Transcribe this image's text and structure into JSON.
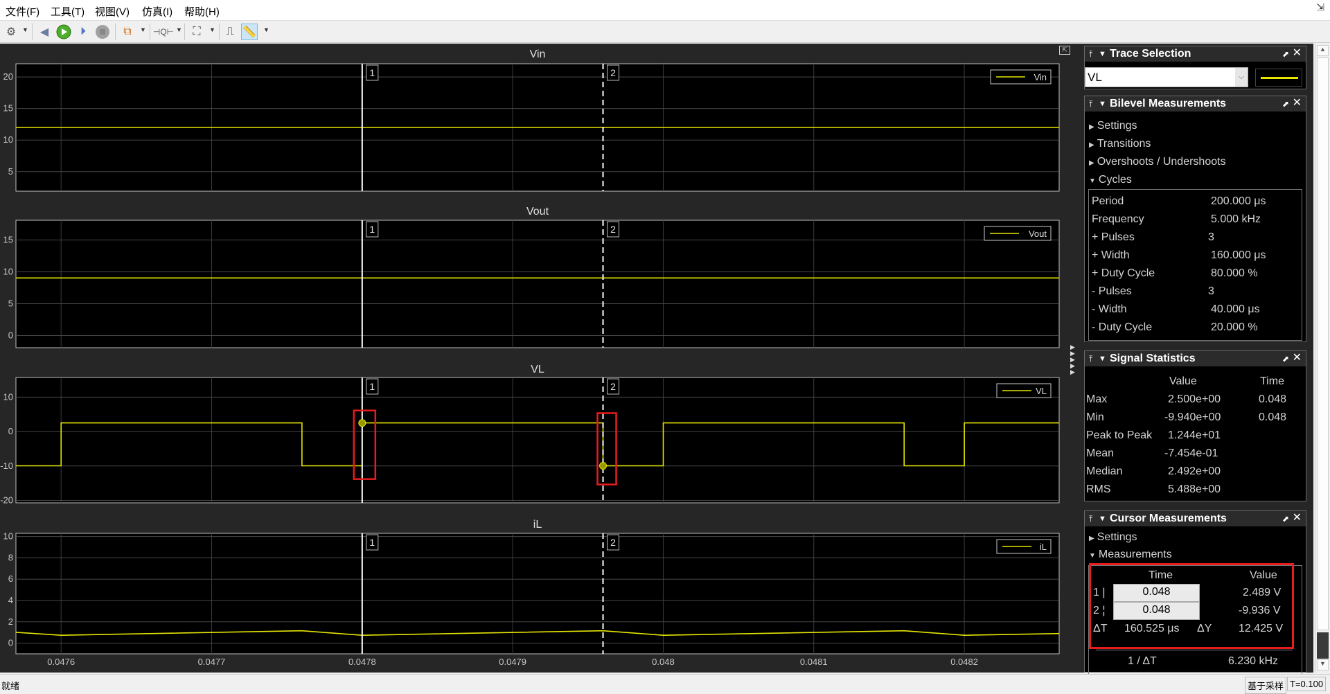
{
  "menu": [
    "文件(F)",
    "工具(T)",
    "视图(V)",
    "仿真(I)",
    "帮助(H)"
  ],
  "toolbar": [
    "settings-icon",
    "step-back-icon",
    "run-icon",
    "step-forward-icon",
    "stop-icon",
    "signal-routing-icon",
    "zoom-x-icon",
    "autoscale-icon",
    "triggers-icon",
    "cursor-measurements-icon"
  ],
  "colors": {
    "trace": "#e6e600",
    "highlight": "#e81c1c",
    "plot_bg": "#000000",
    "scope_bg": "#262626"
  },
  "cursors": {
    "c1_label": "1",
    "c2_label": "2",
    "c1_time": 0.0478,
    "c2_time": 0.04796
  },
  "chart_data": [
    {
      "type": "line",
      "title": "Vin",
      "legend": "Vin",
      "legend_placement": "top-right",
      "grid": true,
      "xlim": [
        0.04757,
        0.048263
      ],
      "ylim": [
        1.9,
        22.1
      ],
      "yticks": [
        5,
        10,
        15,
        20
      ],
      "xticks": [],
      "series": [
        {
          "name": "Vin",
          "x": [
            0.04757,
            0.048263
          ],
          "y": [
            12,
            12
          ]
        }
      ]
    },
    {
      "type": "line",
      "title": "Vout",
      "legend": "Vout",
      "legend_placement": "top-right",
      "grid": true,
      "xlim": [
        0.04757,
        0.048263
      ],
      "ylim": [
        -1.9,
        18.1
      ],
      "yticks": [
        0,
        5,
        10,
        15
      ],
      "xticks": [],
      "series": [
        {
          "name": "Vout",
          "x": [
            0.04757,
            0.048263
          ],
          "y": [
            9.05,
            9.05
          ]
        }
      ]
    },
    {
      "type": "line",
      "title": "VL",
      "legend": "VL",
      "legend_placement": "top-right",
      "grid": true,
      "xlim": [
        0.04757,
        0.048263
      ],
      "ylim": [
        -20.7,
        15.7
      ],
      "yticks": [
        -20,
        -10,
        0,
        10
      ],
      "xticks": [],
      "series": [
        {
          "name": "VL",
          "x": [
            0.04757,
            0.0476,
            0.0476,
            0.04776,
            0.04776,
            0.0478,
            0.0478,
            0.04796,
            0.04796,
            0.048,
            0.048,
            0.04816,
            0.04816,
            0.0482,
            0.0482,
            0.048263
          ],
          "y": [
            -9.94,
            -9.94,
            2.5,
            2.5,
            -9.94,
            -9.94,
            2.5,
            2.5,
            -9.94,
            -9.94,
            2.5,
            2.5,
            -9.94,
            -9.94,
            2.5,
            2.5
          ]
        }
      ],
      "markers": [
        {
          "x": 0.0478,
          "y": 2.489
        },
        {
          "x": 0.04796,
          "y": -9.936
        }
      ]
    },
    {
      "type": "line",
      "title": "iL",
      "legend": "iL",
      "legend_placement": "top-right",
      "grid": true,
      "xlim": [
        0.04757,
        0.048263
      ],
      "ylim": [
        -1.0,
        10.3
      ],
      "yticks": [
        0,
        2,
        4,
        6,
        8,
        10
      ],
      "xticks": [
        "0.0476",
        "0.0477",
        "0.0478",
        "0.0479",
        "0.048",
        "0.0481",
        "0.0482"
      ],
      "series": [
        {
          "name": "iL",
          "x": [
            0.04757,
            0.0476,
            0.04776,
            0.0478,
            0.04796,
            0.048,
            0.04816,
            0.0482,
            0.048263
          ],
          "y": [
            1.02,
            0.74,
            1.16,
            0.74,
            1.16,
            0.74,
            1.16,
            0.74,
            0.9
          ]
        }
      ]
    }
  ],
  "trace_selection": {
    "title": "Trace Selection",
    "selected": "VL"
  },
  "bilevel": {
    "title": "Bilevel Measurements",
    "sections": [
      "Settings",
      "Transitions",
      "Overshoots / Undershoots",
      "Cycles"
    ],
    "rows": [
      {
        "label": "Period",
        "value": "200.000 μs"
      },
      {
        "label": "Frequency",
        "value": "5.000 kHz"
      },
      {
        "label": "+ Pulses",
        "value": "3"
      },
      {
        "label": "+ Width",
        "value": "160.000 μs"
      },
      {
        "label": "+ Duty Cycle",
        "value": "80.000 %"
      },
      {
        "label": "- Pulses",
        "value": "3"
      },
      {
        "label": "- Width",
        "value": "40.000 μs"
      },
      {
        "label": "- Duty Cycle",
        "value": "20.000 %"
      }
    ]
  },
  "signal_statistics": {
    "title": "Signal Statistics",
    "col_value": "Value",
    "col_time": "Time",
    "rows": [
      {
        "label": "Max",
        "value": "2.500e+00",
        "time": "0.048"
      },
      {
        "label": "Min",
        "value": "-9.940e+00",
        "time": "0.048"
      },
      {
        "label": "Peak to Peak",
        "value": "1.244e+01",
        "time": ""
      },
      {
        "label": "Mean",
        "value": "-7.454e-01",
        "time": ""
      },
      {
        "label": "Median",
        "value": "2.492e+00",
        "time": ""
      },
      {
        "label": "RMS",
        "value": "5.488e+00",
        "time": ""
      }
    ]
  },
  "cursor_measurements": {
    "title": "Cursor Measurements",
    "sections": [
      "Settings",
      "Measurements"
    ],
    "col_time": "Time",
    "col_value": "Value",
    "c1_label": "1 |",
    "c1_time": "0.048",
    "c1_value": "2.489 V",
    "c2_label": "2 ¦",
    "c2_time": "0.048",
    "c2_value": "-9.936 V",
    "dt_label": "ΔT",
    "dt_value": "160.525 μs",
    "dy_label": "ΔY",
    "dy_value": "12.425 V",
    "inv_dt_label": "1 / ΔT",
    "inv_dt_value": "6.230 kHz"
  },
  "status": {
    "left": "就绪",
    "mode": "基于采样",
    "time": "T=0.100"
  }
}
